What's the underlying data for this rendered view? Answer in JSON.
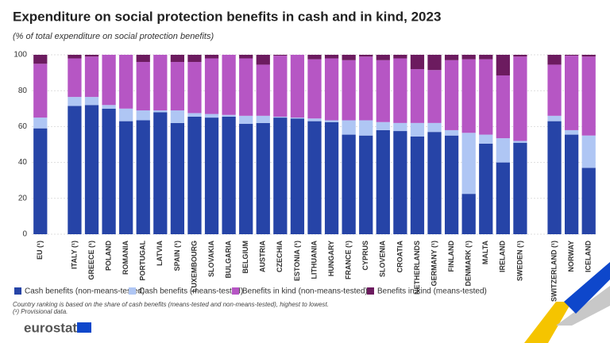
{
  "chart_data": {
    "type": "stacked_bar",
    "title": "Expenditure on social protection benefits in cash and in kind, 2023",
    "subtitle": "(% of total expenditure on social protection benefits)",
    "categories": [
      "EU (¹)",
      null,
      "ITALY (¹)",
      "GREECE (¹)",
      "POLAND",
      "ROMANIA",
      "PORTUGAL",
      "LATVIA",
      "SPAIN (¹)",
      "LUXEMBOURG",
      "SLOVAKIA",
      "BULGARIA",
      "BELGIUM",
      "AUSTRIA",
      "CZECHIA",
      "ESTONIA (¹)",
      "LITHUANIA",
      "HUNGARY",
      "FRANCE (¹)",
      "CYPRUS",
      "SLOVENIA",
      "CROATIA",
      "NETHERLANDS",
      "GERMANY (¹)",
      "FINLAND",
      "DENMARK (¹)",
      "MALTA",
      "IRELAND",
      "SWEDEN (¹)",
      null,
      "SWITZERLAND (¹)",
      "NORWAY",
      "ICELAND"
    ],
    "series": [
      {
        "name": "Cash benefits (non-means-tested)",
        "color": "#2644a7",
        "values": [
          59,
          null,
          71.5,
          72,
          70,
          63,
          63.5,
          68,
          62,
          65.5,
          65,
          65.5,
          61.5,
          62,
          65,
          64.5,
          63,
          62.5,
          55.5,
          55,
          58,
          57.5,
          54.5,
          57,
          55,
          22.5,
          50.5,
          40,
          51,
          null,
          63,
          55.5,
          37
        ]
      },
      {
        "name": "Cash benefits (means-tested)",
        "color": "#afc6f4",
        "values": [
          6,
          null,
          5,
          4.5,
          2,
          7,
          5.5,
          1,
          7,
          2,
          2,
          1,
          4.5,
          4,
          0.5,
          0.5,
          1.5,
          1,
          8,
          8.5,
          4.5,
          4.5,
          7.5,
          5,
          3,
          34,
          5,
          13.5,
          1,
          null,
          3,
          2.5,
          18
        ]
      },
      {
        "name": "Benefits in kind (non-means-tested)",
        "color": "#b656c4",
        "values": [
          30,
          null,
          21.5,
          22.5,
          28,
          30,
          27,
          31,
          27,
          28.5,
          31,
          33.5,
          32,
          28.5,
          34,
          35,
          33,
          34.5,
          33.5,
          35.5,
          34.5,
          36,
          30,
          29.5,
          39,
          41,
          42,
          35,
          47,
          null,
          28.5,
          41.5,
          44
        ]
      },
      {
        "name": "Benefits in kind (means-tested)",
        "color": "#6c1b5f",
        "values": [
          5,
          null,
          2,
          1,
          0,
          0,
          4,
          0,
          4,
          4,
          2,
          0,
          2,
          5.5,
          0.5,
          0,
          2.5,
          2,
          3,
          1,
          3,
          2,
          8,
          8.5,
          3,
          2.5,
          2.5,
          11.5,
          1,
          null,
          5.5,
          0.5,
          1
        ]
      }
    ],
    "ylim": [
      0,
      100
    ],
    "yticks": [
      0,
      20,
      40,
      60,
      80,
      100
    ],
    "grid": true,
    "notes": [
      "Country ranking is based on the share of cash benefits (means-tested and non-means-tested), highest to lowest.",
      "(¹) Provisional data."
    ],
    "source": "eurostat"
  }
}
